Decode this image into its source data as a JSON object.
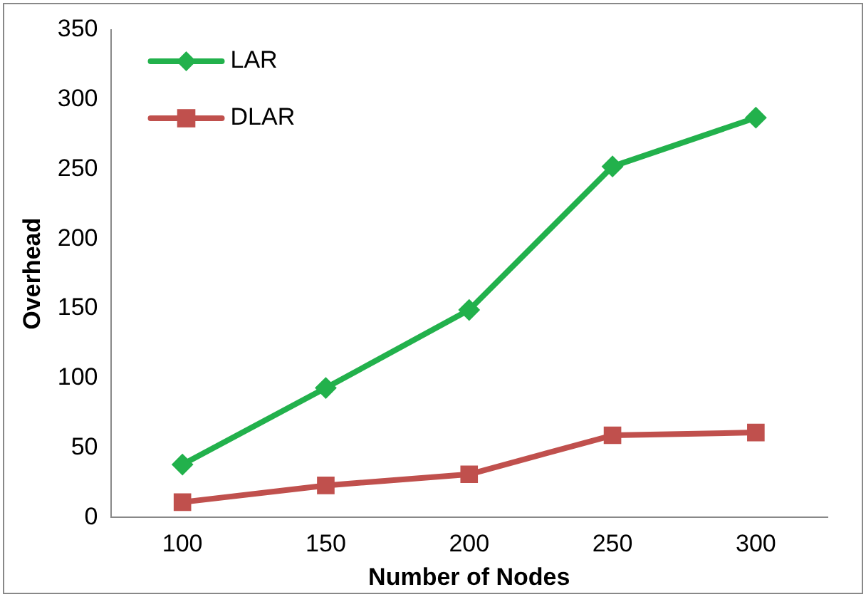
{
  "chart_data": {
    "type": "line",
    "xlabel": "Number of Nodes",
    "ylabel": "Overhead",
    "categories": [
      "100",
      "150",
      "200",
      "250",
      "300"
    ],
    "series": [
      {
        "name": "LAR",
        "color": "#22b14c",
        "marker": "diamond",
        "values": [
          38,
          93,
          149,
          252,
          287
        ]
      },
      {
        "name": "DLAR",
        "color": "#c0504d",
        "marker": "square",
        "values": [
          11,
          23,
          31,
          59,
          61
        ]
      }
    ],
    "ylim": [
      0,
      350
    ],
    "yticks": [
      0,
      50,
      100,
      150,
      200,
      250,
      300,
      350
    ],
    "grid": false,
    "legend": "top left",
    "line_style": "solid"
  }
}
